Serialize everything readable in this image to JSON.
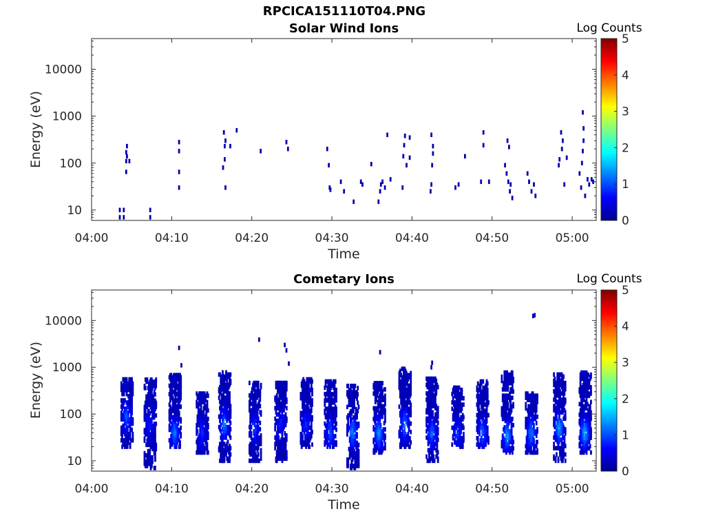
{
  "figure_title": "RPCICA151110T04.PNG",
  "chart_data": [
    {
      "type": "heatmap",
      "title": "Solar Wind Ions",
      "xlabel": "Time",
      "ylabel": "Energy (eV)",
      "x_ticks": [
        "04:00",
        "04:10",
        "04:20",
        "04:30",
        "04:40",
        "04:50",
        "05:00"
      ],
      "x_tick_minutes": [
        0,
        10,
        20,
        30,
        40,
        50,
        60
      ],
      "xlim_minutes": [
        0,
        63
      ],
      "y_ticks": [
        10,
        100,
        1000,
        10000
      ],
      "y_ticks_labels": [
        "10",
        "100",
        "1000",
        "10000"
      ],
      "ylim": [
        6,
        45000
      ],
      "yscale": "log",
      "colorbar_label": "Log Counts",
      "colorbar_ticks": [
        "0",
        "1",
        "2",
        "3",
        "4",
        "5"
      ],
      "clim": [
        0,
        5
      ],
      "colormap": "jet",
      "cells": [
        [
          3.4,
          7,
          0
        ],
        [
          3.4,
          10,
          0
        ],
        [
          3.9,
          7,
          0
        ],
        [
          3.9,
          10,
          0
        ],
        [
          7.2,
          7,
          0
        ],
        [
          7.2,
          10,
          0
        ],
        [
          4.2,
          65,
          0
        ],
        [
          4.2,
          110,
          0
        ],
        [
          4.3,
          140,
          0
        ],
        [
          4.2,
          170,
          0
        ],
        [
          4.3,
          230,
          0
        ],
        [
          4.6,
          110,
          0
        ],
        [
          10.8,
          30,
          0
        ],
        [
          10.8,
          65,
          0
        ],
        [
          10.8,
          180,
          0
        ],
        [
          10.8,
          280,
          0
        ],
        [
          16.3,
          80,
          0
        ],
        [
          16.5,
          120,
          0
        ],
        [
          16.5,
          230,
          0
        ],
        [
          16.6,
          300,
          0
        ],
        [
          16.4,
          450,
          0
        ],
        [
          16.6,
          30,
          0
        ],
        [
          17.2,
          230,
          0
        ],
        [
          18.0,
          500,
          0
        ],
        [
          21.0,
          180,
          0
        ],
        [
          24.2,
          280,
          0
        ],
        [
          24.4,
          200,
          0
        ],
        [
          29.3,
          200,
          0
        ],
        [
          29.5,
          90,
          0
        ],
        [
          29.6,
          30,
          0
        ],
        [
          29.7,
          27,
          0
        ],
        [
          31.4,
          25,
          0
        ],
        [
          31.0,
          40,
          0
        ],
        [
          32.6,
          15,
          0
        ],
        [
          33.5,
          40,
          0
        ],
        [
          33.7,
          35,
          0
        ],
        [
          34.8,
          95,
          0
        ],
        [
          35.7,
          15,
          0
        ],
        [
          35.9,
          25,
          0
        ],
        [
          36.0,
          35,
          0
        ],
        [
          36.2,
          40,
          0
        ],
        [
          36.5,
          30,
          0
        ],
        [
          36.8,
          400,
          0
        ],
        [
          37.2,
          45,
          0
        ],
        [
          38.7,
          30,
          0
        ],
        [
          38.8,
          140,
          0
        ],
        [
          38.9,
          240,
          0
        ],
        [
          39.0,
          380,
          0
        ],
        [
          39.2,
          90,
          0
        ],
        [
          39.6,
          350,
          0
        ],
        [
          39.6,
          130,
          0
        ],
        [
          42.2,
          25,
          0
        ],
        [
          42.3,
          35,
          0
        ],
        [
          42.4,
          90,
          0
        ],
        [
          42.5,
          160,
          0
        ],
        [
          42.5,
          230,
          0
        ],
        [
          42.3,
          400,
          0
        ],
        [
          45.3,
          30,
          0
        ],
        [
          45.7,
          35,
          0
        ],
        [
          46.5,
          140,
          0
        ],
        [
          48.5,
          40,
          0
        ],
        [
          48.8,
          240,
          0
        ],
        [
          48.8,
          450,
          0
        ],
        [
          49.5,
          40,
          0
        ],
        [
          51.5,
          90,
          0
        ],
        [
          51.7,
          60,
          0
        ],
        [
          51.9,
          40,
          0
        ],
        [
          52.1,
          25,
          0
        ],
        [
          52.2,
          35,
          0
        ],
        [
          52.4,
          18,
          0
        ],
        [
          51.8,
          300,
          0
        ],
        [
          52.0,
          220,
          0
        ],
        [
          54.3,
          60,
          0
        ],
        [
          54.5,
          40,
          0
        ],
        [
          54.8,
          25,
          0
        ],
        [
          55.1,
          35,
          0
        ],
        [
          55.3,
          20,
          0
        ],
        [
          58.2,
          90,
          0
        ],
        [
          58.3,
          120,
          0
        ],
        [
          58.6,
          200,
          0
        ],
        [
          58.7,
          300,
          0
        ],
        [
          58.5,
          450,
          0
        ],
        [
          58.9,
          35,
          0
        ],
        [
          59.2,
          130,
          0
        ],
        [
          60.8,
          60,
          0
        ],
        [
          61.0,
          30,
          0
        ],
        [
          61.1,
          100,
          0
        ],
        [
          61.2,
          180,
          0
        ],
        [
          61.3,
          300,
          0
        ],
        [
          61.3,
          550,
          0
        ],
        [
          61.2,
          1200,
          0
        ],
        [
          61.5,
          20,
          0
        ],
        [
          61.8,
          45,
          0
        ],
        [
          62.0,
          35,
          0
        ],
        [
          62.3,
          45,
          0
        ],
        [
          62.5,
          40,
          0
        ]
      ]
    },
    {
      "type": "heatmap",
      "title": "Cometary Ions",
      "xlabel": "Time",
      "ylabel": "Energy (eV)",
      "x_ticks": [
        "04:00",
        "04:10",
        "04:20",
        "04:30",
        "04:40",
        "04:50",
        "05:00"
      ],
      "x_tick_minutes": [
        0,
        10,
        20,
        30,
        40,
        50,
        60
      ],
      "xlim_minutes": [
        0,
        63
      ],
      "y_ticks": [
        10,
        100,
        1000,
        10000
      ],
      "y_ticks_labels": [
        "10",
        "100",
        "1000",
        "10000"
      ],
      "ylim": [
        6,
        45000
      ],
      "yscale": "log",
      "colorbar_label": "Log Counts",
      "colorbar_ticks": [
        "0",
        "1",
        "2",
        "3",
        "4",
        "5"
      ],
      "clim": [
        0,
        5
      ],
      "colormap": "jet",
      "bursts": [
        {
          "t": 4.3,
          "emin": 20,
          "emax": 600,
          "peak_e": 90,
          "peak": 1.0
        },
        {
          "t": 7.2,
          "emin": 7,
          "emax": 600,
          "peak_e": 60,
          "peak": 0.6
        },
        {
          "t": 10.3,
          "emin": 20,
          "emax": 700,
          "peak_e": 40,
          "peak": 1.2
        },
        {
          "t": 13.7,
          "emin": 15,
          "emax": 300,
          "peak_e": 40,
          "peak": 0.7
        },
        {
          "t": 16.5,
          "emin": 10,
          "emax": 800,
          "peak_e": 60,
          "peak": 1.2
        },
        {
          "t": 20.3,
          "emin": 10,
          "emax": 500,
          "peak_e": 50,
          "peak": 0.8
        },
        {
          "t": 23.5,
          "emin": 10,
          "emax": 500,
          "peak_e": 60,
          "peak": 0.6
        },
        {
          "t": 26.7,
          "emin": 20,
          "emax": 600,
          "peak_e": 60,
          "peak": 0.7
        },
        {
          "t": 29.7,
          "emin": 20,
          "emax": 500,
          "peak_e": 40,
          "peak": 1.0
        },
        {
          "t": 32.5,
          "emin": 7,
          "emax": 400,
          "peak_e": 40,
          "peak": 1.3
        },
        {
          "t": 35.8,
          "emin": 15,
          "emax": 500,
          "peak_e": 40,
          "peak": 1.4
        },
        {
          "t": 39.0,
          "emin": 20,
          "emax": 1000,
          "peak_e": 60,
          "peak": 1.2
        },
        {
          "t": 42.4,
          "emin": 10,
          "emax": 600,
          "peak_e": 40,
          "peak": 1.1
        },
        {
          "t": 45.6,
          "emin": 20,
          "emax": 400,
          "peak_e": 40,
          "peak": 0.8
        },
        {
          "t": 48.7,
          "emin": 20,
          "emax": 500,
          "peak_e": 40,
          "peak": 1.1
        },
        {
          "t": 51.8,
          "emin": 15,
          "emax": 800,
          "peak_e": 35,
          "peak": 1.4
        },
        {
          "t": 54.8,
          "emin": 15,
          "emax": 300,
          "peak_e": 40,
          "peak": 1.3
        },
        {
          "t": 58.3,
          "emin": 10,
          "emax": 700,
          "peak_e": 50,
          "peak": 1.5
        },
        {
          "t": 61.5,
          "emin": 15,
          "emax": 800,
          "peak_e": 40,
          "peak": 1.6
        }
      ],
      "scattered_cells": [
        [
          10.8,
          2600,
          0
        ],
        [
          20.8,
          3900,
          0
        ],
        [
          24.0,
          3000,
          0
        ],
        [
          24.2,
          2300,
          0
        ],
        [
          24.5,
          1200,
          0
        ],
        [
          35.9,
          2100,
          0
        ],
        [
          42.4,
          1250,
          0
        ],
        [
          42.3,
          1000,
          0
        ],
        [
          55.2,
          13000,
          0
        ],
        [
          55.0,
          12500,
          0
        ],
        [
          11.1,
          1100,
          0
        ]
      ]
    }
  ]
}
